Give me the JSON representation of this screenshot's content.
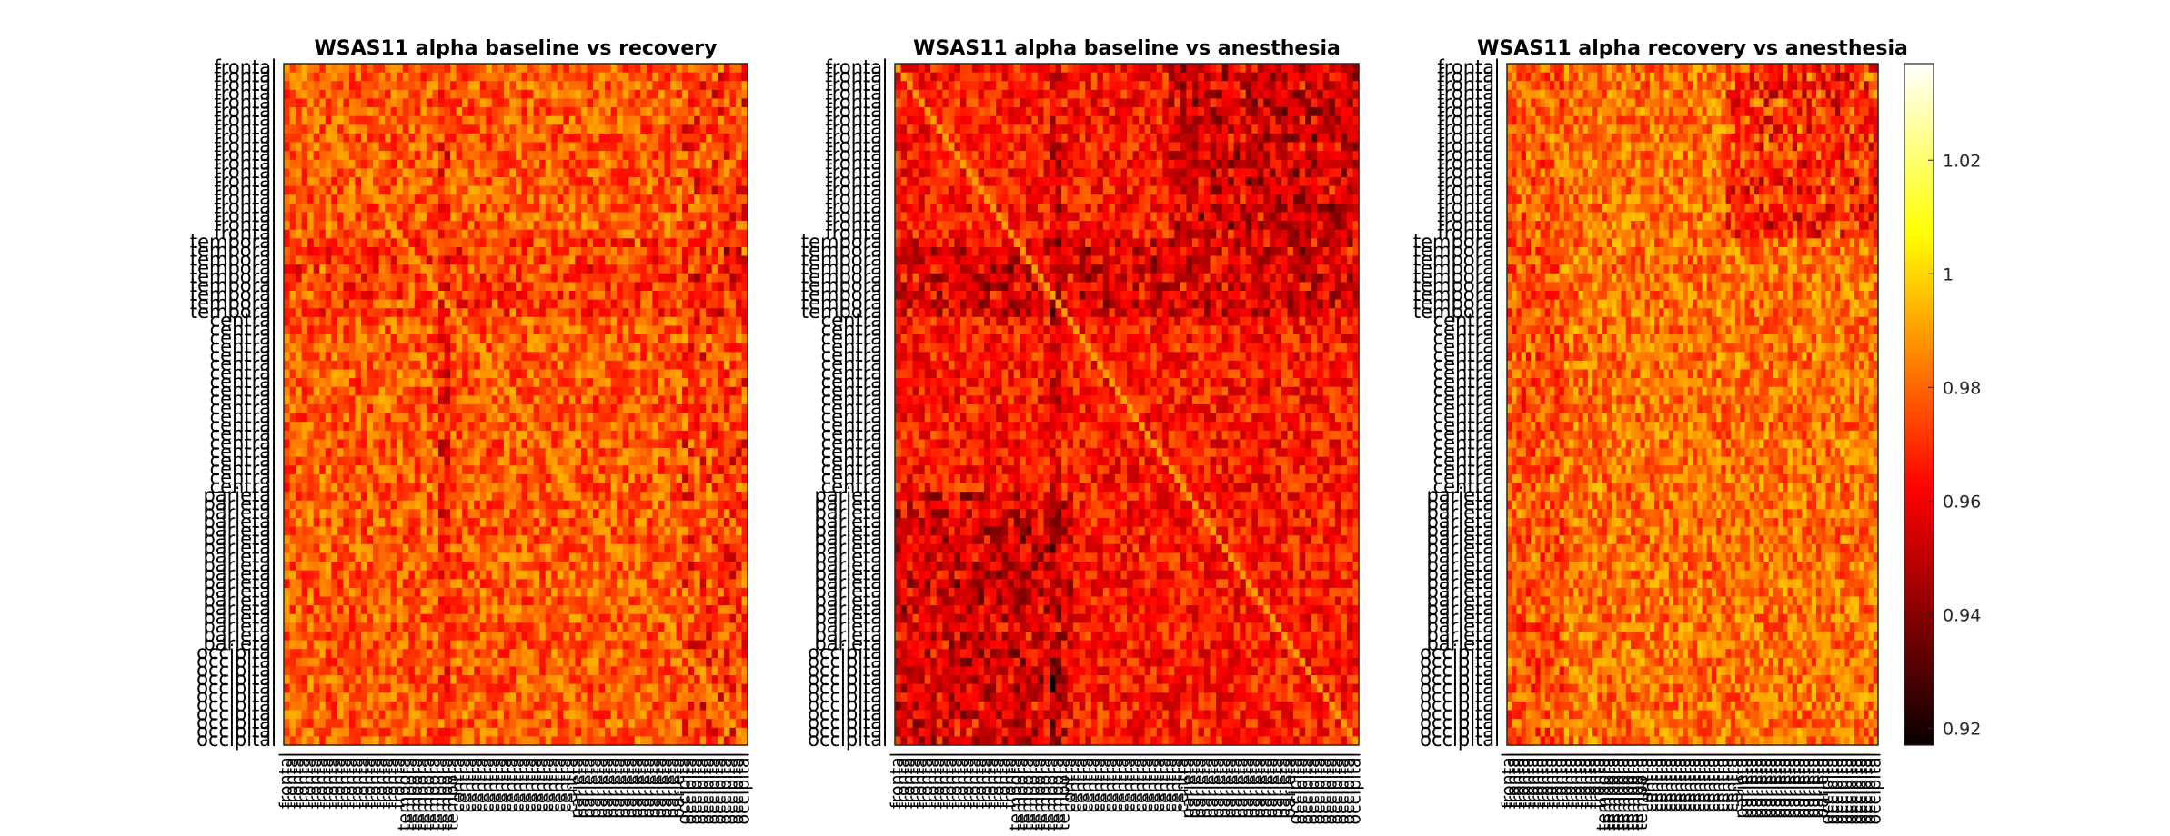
{
  "figure": {
    "colormap": "hot",
    "colors": {
      "background": "#ffffff",
      "axis": "#262626"
    },
    "channel_groups": [
      {
        "name": "frontal",
        "count": 20
      },
      {
        "name": "temporal",
        "count": 9
      },
      {
        "name": "central",
        "count": 20
      },
      {
        "name": "parietal",
        "count": 18
      },
      {
        "name": "occipital",
        "count": 11
      }
    ]
  },
  "chart_data": [
    {
      "type": "heatmap",
      "title": "WSAS11 alpha baseline vs recovery",
      "x_tick_labels": "channel labels (frontal … occipital), same order as y",
      "y_tick_labels": "channel labels (frontal … occipital)",
      "matrix_size": [
        78,
        78
      ],
      "value_summary": {
        "typical": 0.975,
        "dark_bands": [
          "temporal rows",
          "column near index 26"
        ]
      },
      "clim": [
        0.917,
        1.037
      ]
    },
    {
      "type": "heatmap",
      "title": "WSAS11 alpha baseline vs anesthesia",
      "matrix_size": [
        78,
        78
      ],
      "value_summary": {
        "typical": 0.965,
        "dark_bands": [
          "frontal rows right half",
          "temporal rows",
          "parietal/occipital columns left"
        ]
      },
      "clim": [
        0.917,
        1.037
      ]
    },
    {
      "type": "heatmap",
      "title": "WSAS11 alpha recovery vs anesthesia",
      "matrix_size": [
        78,
        78
      ],
      "value_summary": {
        "typical": 0.98,
        "dark_bands": [
          "frontal rows right half"
        ]
      },
      "clim": [
        0.917,
        1.037
      ]
    }
  ],
  "colorbar": {
    "ticks": [
      0.92,
      0.94,
      0.96,
      0.98,
      1,
      1.02
    ],
    "tick_labels": [
      "0.92",
      "0.94",
      "0.96",
      "0.98",
      "1",
      "1.02"
    ],
    "range": [
      0.917,
      1.037
    ]
  }
}
